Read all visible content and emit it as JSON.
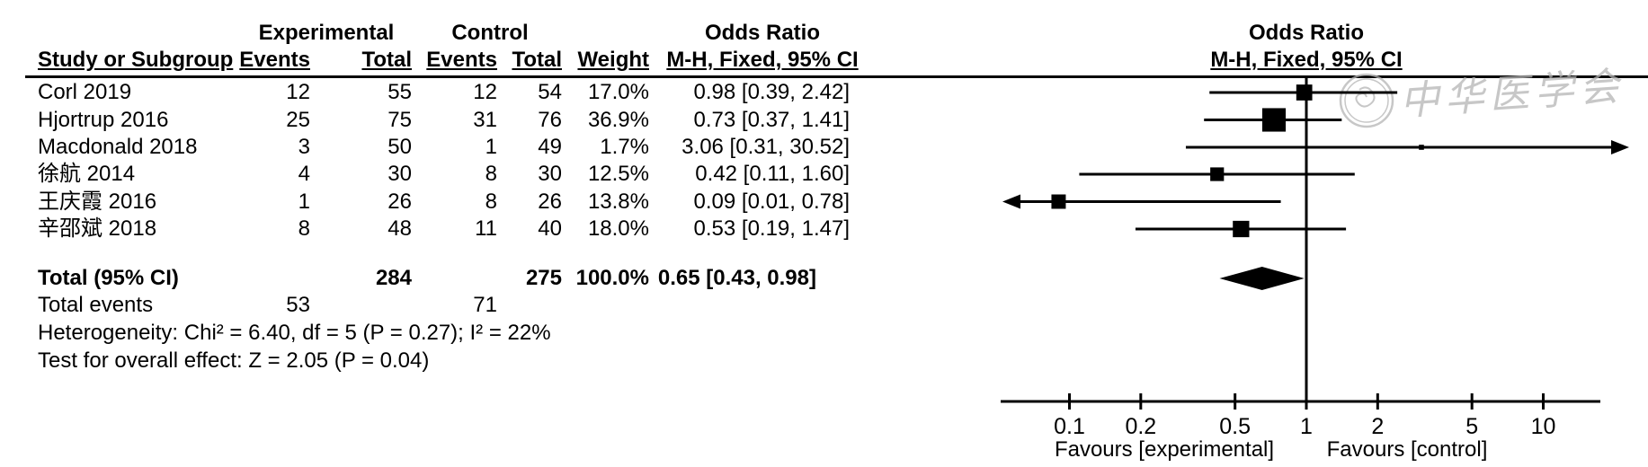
{
  "figure": {
    "type": "forest-plot-meta-analysis",
    "text_color": "#000000",
    "background": "#ffffff"
  },
  "watermark": {
    "text": "中华医学会",
    "seal": "cma-seal",
    "color": "#b5b5b5"
  },
  "header": {
    "experimental": "Experimental",
    "control": "Control",
    "odds_ratio": "Odds Ratio",
    "study": "Study or Subgroup",
    "events": "Events",
    "total": "Total",
    "weight": "Weight",
    "mh": "M-H, Fixed, 95% CI"
  },
  "table": {
    "rows": [
      {
        "study": "Corl 2019",
        "e1": "12",
        "t1": "55",
        "e2": "12",
        "t2": "54",
        "w": "17.0%",
        "ci": "0.98 [0.39, 2.42]"
      },
      {
        "study": "Hjortrup 2016",
        "e1": "25",
        "t1": "75",
        "e2": "31",
        "t2": "76",
        "w": "36.9%",
        "ci": "0.73 [0.37, 1.41]"
      },
      {
        "study": "Macdonald 2018",
        "e1": "3",
        "t1": "50",
        "e2": "1",
        "t2": "49",
        "w": "1.7%",
        "ci": "3.06 [0.31, 30.52]"
      },
      {
        "study": "徐航 2014",
        "e1": "4",
        "t1": "30",
        "e2": "8",
        "t2": "30",
        "w": "12.5%",
        "ci": "0.42 [0.11, 1.60]"
      },
      {
        "study": "王庆霞 2016",
        "e1": "1",
        "t1": "26",
        "e2": "8",
        "t2": "26",
        "w": "13.8%",
        "ci": "0.09 [0.01, 0.78]"
      },
      {
        "study": "辛邵斌 2018",
        "e1": "8",
        "t1": "48",
        "e2": "11",
        "t2": "40",
        "w": "18.0%",
        "ci": "0.53 [0.19, 1.47]"
      }
    ],
    "total_row": {
      "label": "Total (95% CI)",
      "t1": "284",
      "t2": "275",
      "w": "100.0%",
      "ci": "0.65 [0.43, 0.98]"
    },
    "total_events": {
      "label": "Total events",
      "e1": "53",
      "e2": "71"
    },
    "footnotes": {
      "heterogeneity": "Heterogeneity: Chi² = 6.40, df = 5 (P = 0.27); I² = 22%",
      "overall_effect": "Test for overall effect: Z = 2.05 (P = 0.04)"
    }
  },
  "chart_data": {
    "type": "forest",
    "x_scale": "log10",
    "effect_measure": "Odds Ratio (M-H, Fixed, 95% CI)",
    "null_line": 1,
    "axis_ticks": [
      0.1,
      0.2,
      0.5,
      1,
      2,
      5,
      10
    ],
    "axis_tick_labels": [
      "0.1",
      "0.2",
      "0.5",
      "1",
      "2",
      "5",
      "10"
    ],
    "favours_left": "Favours [experimental]",
    "favours_right": "Favours [control]",
    "studies": [
      {
        "name": "Corl 2019",
        "or": 0.98,
        "low": 0.39,
        "high": 2.42,
        "weight": 17.0
      },
      {
        "name": "Hjortrup 2016",
        "or": 0.73,
        "low": 0.37,
        "high": 1.41,
        "weight": 36.9
      },
      {
        "name": "Macdonald 2018",
        "or": 3.06,
        "low": 0.31,
        "high": 30.52,
        "weight": 1.7
      },
      {
        "name": "徐航 2014",
        "or": 0.42,
        "low": 0.11,
        "high": 1.6,
        "weight": 12.5
      },
      {
        "name": "王庆霞 2016",
        "or": 0.09,
        "low": 0.01,
        "high": 0.78,
        "weight": 13.8
      },
      {
        "name": "辛邵斌 2018",
        "or": 0.53,
        "low": 0.19,
        "high": 1.47,
        "weight": 18.0
      }
    ],
    "total": {
      "or": 0.65,
      "low": 0.43,
      "high": 0.98
    },
    "totals": {
      "experimental_n": 284,
      "control_n": 275,
      "experimental_events": 53,
      "control_events": 71
    },
    "heterogeneity": {
      "chi2": 6.4,
      "df": 5,
      "p": 0.27,
      "i2_pct": 22
    },
    "overall_effect": {
      "z": 2.05,
      "p": 0.04
    }
  }
}
